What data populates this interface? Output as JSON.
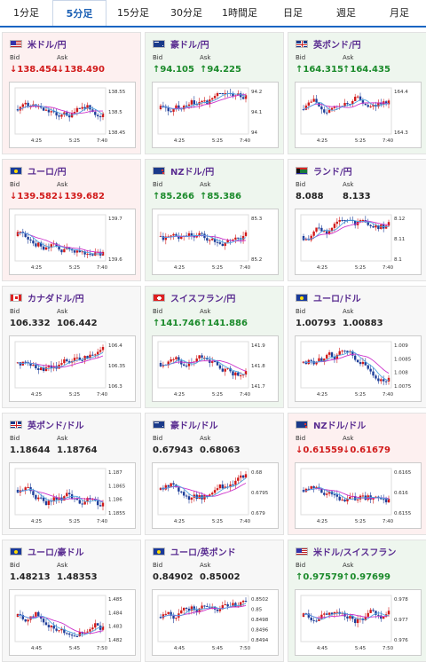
{
  "tabs": [
    {
      "label": "1分足",
      "active": false
    },
    {
      "label": "5分足",
      "active": true
    },
    {
      "label": "15分足",
      "active": false
    },
    {
      "label": "30分足",
      "active": false
    },
    {
      "label": "1時間足",
      "active": false
    },
    {
      "label": "日足",
      "active": false
    },
    {
      "label": "週足",
      "active": false
    },
    {
      "label": "月足",
      "active": false
    }
  ],
  "labels": {
    "bid": "Bid",
    "ask": "Ask"
  },
  "colors": {
    "down": "#d11a1a",
    "up": "#1a8a2a",
    "tab_accent": "#1a66c2",
    "pair_title": "#5a2d91",
    "ma_line": "#cc33cc",
    "bull_candle": "#d11a1a",
    "bear_candle": "#1f3f9a"
  },
  "cards": [
    {
      "pair": "米ドル/円",
      "flag": "us-flag-icon",
      "trend": "down",
      "bid": "↓138.454",
      "ask": "↓138.490",
      "yticks": [
        "138.55",
        "138.5",
        "138.45"
      ],
      "xticks": [
        "4:25",
        "5:25",
        "7:40"
      ]
    },
    {
      "pair": "豪ドル/円",
      "flag": "au-flag-icon",
      "trend": "up",
      "bid": "↑94.105",
      "ask": "↑94.225",
      "yticks": [
        "94.2",
        "94.1",
        "94"
      ],
      "xticks": [
        "4:25",
        "5:25",
        "7:40"
      ]
    },
    {
      "pair": "英ポンド/円",
      "flag": "gb-flag-icon",
      "trend": "up",
      "bid": "↑164.315",
      "ask": "↑164.435",
      "yticks": [
        "164.4",
        "164.3"
      ],
      "xticks": [
        "4:25",
        "5:25",
        "7:40"
      ]
    },
    {
      "pair": "ユーロ/円",
      "flag": "eu-flag-icon",
      "trend": "down",
      "bid": "↓139.582",
      "ask": "↓139.682",
      "yticks": [
        "139.7",
        "139.6"
      ],
      "xticks": [
        "4:25",
        "5:25",
        "7:40"
      ]
    },
    {
      "pair": "NZドル/円",
      "flag": "nz-flag-icon",
      "trend": "up",
      "bid": "↑85.266",
      "ask": "↑85.386",
      "yticks": [
        "85.3",
        "85.2"
      ],
      "xticks": [
        "4:25",
        "5:25",
        "7:40"
      ]
    },
    {
      "pair": "ランド/円",
      "flag": "za-flag-icon",
      "trend": "flat",
      "bid": "8.088",
      "ask": "8.133",
      "yticks": [
        "8.12",
        "8.11",
        "8.1"
      ],
      "xticks": [
        "4:25",
        "5:25",
        "7:40"
      ]
    },
    {
      "pair": "カナダドル/円",
      "flag": "ca-flag-icon",
      "trend": "flat",
      "bid": "106.332",
      "ask": "106.442",
      "yticks": [
        "106.4",
        "106.35",
        "106.3"
      ],
      "xticks": [
        "4:25",
        "5:25",
        "7:40"
      ]
    },
    {
      "pair": "スイスフラン/円",
      "flag": "ch-flag-icon",
      "trend": "up",
      "bid": "↑141.746",
      "ask": "↑141.886",
      "yticks": [
        "141.9",
        "141.8",
        "141.7"
      ],
      "xticks": [
        "4:25",
        "5:25",
        "7:40"
      ]
    },
    {
      "pair": "ユーロ/ドル",
      "flag": "eu-flag-icon",
      "trend": "flat",
      "bid": "1.00793",
      "ask": "1.00883",
      "yticks": [
        "1.009",
        "1.0085",
        "1.008",
        "1.0075"
      ],
      "xticks": [
        "4:25",
        "5:25",
        "7:40"
      ]
    },
    {
      "pair": "英ポンド/ドル",
      "flag": "gb-flag-icon",
      "trend": "flat",
      "bid": "1.18644",
      "ask": "1.18764",
      "yticks": [
        "1.187",
        "1.1865",
        "1.186",
        "1.1855"
      ],
      "xticks": [
        "4:25",
        "5:25",
        "7:40"
      ]
    },
    {
      "pair": "豪ドル/ドル",
      "flag": "au-flag-icon",
      "trend": "flat",
      "bid": "0.67943",
      "ask": "0.68063",
      "yticks": [
        "0.68",
        "0.6795",
        "0.679"
      ],
      "xticks": [
        "4:25",
        "5:25",
        "7:40"
      ]
    },
    {
      "pair": "NZドル/ドル",
      "flag": "nz-flag-icon",
      "trend": "down",
      "bid": "↓0.61559",
      "ask": "↓0.61679",
      "yticks": [
        "0.6165",
        "0.616",
        "0.6155"
      ],
      "xticks": [
        "4:25",
        "5:25",
        "7:40"
      ]
    },
    {
      "pair": "ユーロ/豪ドル",
      "flag": "eu-flag-icon",
      "trend": "flat",
      "bid": "1.48213",
      "ask": "1.48353",
      "yticks": [
        "1.485",
        "1.484",
        "1.483",
        "1.482"
      ],
      "xticks": [
        "4:45",
        "5:45",
        "7:50"
      ]
    },
    {
      "pair": "ユーロ/英ポンド",
      "flag": "eu-flag-icon",
      "trend": "flat",
      "bid": "0.84902",
      "ask": "0.85002",
      "yticks": [
        "0.8502",
        "0.85",
        "0.8498",
        "0.8496",
        "0.8494"
      ],
      "xticks": [
        "4:45",
        "5:45",
        "7:50"
      ]
    },
    {
      "pair": "米ドル/スイスフラン",
      "flag": "us-flag-icon",
      "trend": "up",
      "bid": "↑0.97579",
      "ask": "↑0.97699",
      "yticks": [
        "0.978",
        "0.977",
        "0.976"
      ],
      "xticks": [
        "4:45",
        "5:45",
        "7:50"
      ]
    }
  ]
}
